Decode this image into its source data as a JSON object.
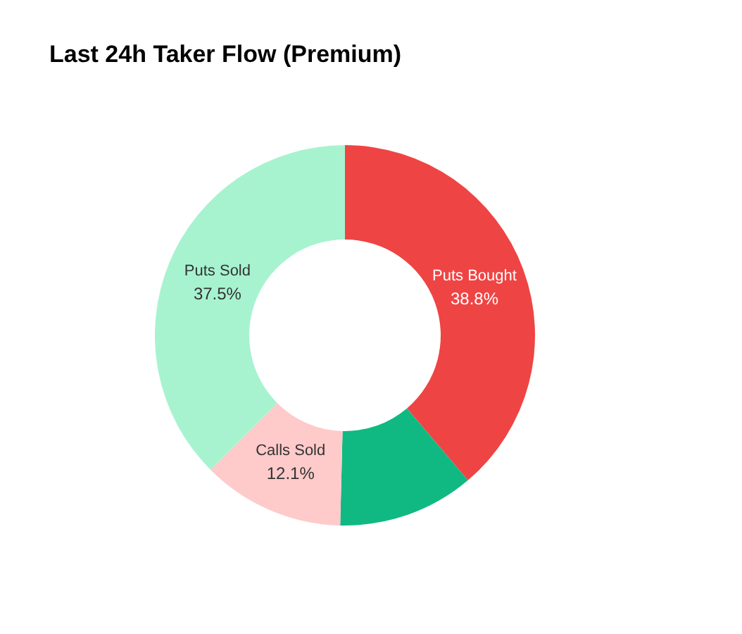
{
  "chart_data": {
    "type": "donut",
    "title": "Last 24h Taker Flow (Premium)",
    "categories": [
      "Puts Bought",
      null,
      "Calls Sold",
      "Puts Sold"
    ],
    "values": [
      38.8,
      11.6,
      12.1,
      37.5
    ],
    "colors": [
      "#ef4444",
      "#10b981",
      "#fecaca",
      "#a7f3d0"
    ],
    "value_labels": [
      "38.8%",
      null,
      "12.1%",
      "37.5%"
    ],
    "legend": false
  }
}
